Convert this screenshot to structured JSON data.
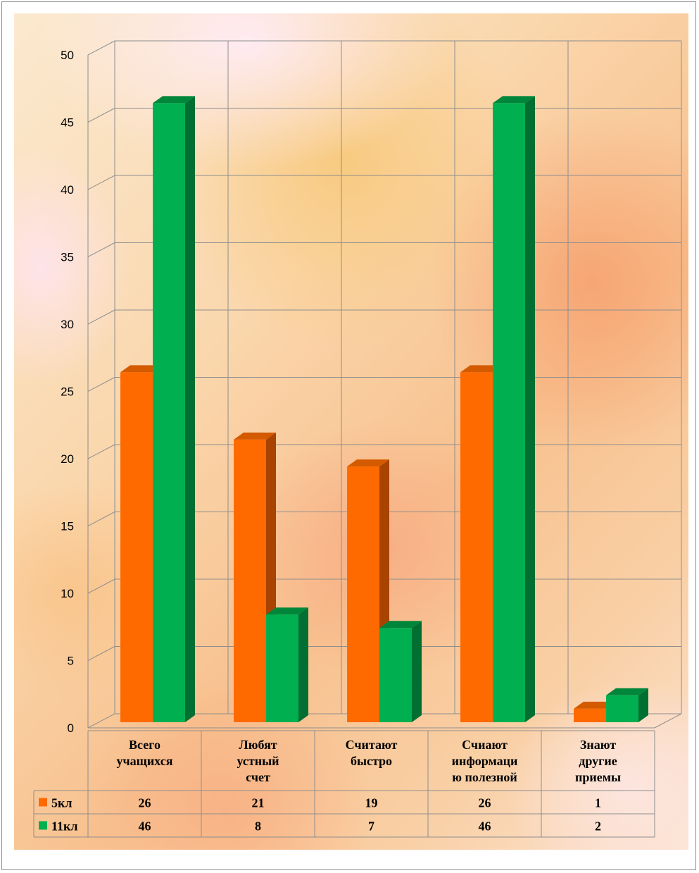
{
  "chart_data": {
    "type": "bar",
    "title": "",
    "xlabel": "",
    "ylabel": "",
    "ylim": [
      0,
      50
    ],
    "yticks": [
      0,
      5,
      10,
      15,
      20,
      25,
      30,
      35,
      40,
      45,
      50
    ],
    "grid": true,
    "legend_placement": "data-table-left",
    "categories": [
      [
        "Всего",
        "учащихся"
      ],
      [
        "Любят",
        "устный",
        "счет"
      ],
      [
        "Считают",
        "быстро"
      ],
      [
        "Счиают",
        "информаци",
        "ю полезной"
      ],
      [
        "Знают",
        "другие",
        "приемы"
      ]
    ],
    "series": [
      {
        "name": "5кл",
        "values": [
          26,
          21,
          19,
          26,
          1
        ],
        "color": "#ff6a00",
        "shade_top": "#d45a00",
        "shade_side": "#a84300"
      },
      {
        "name": "11кл",
        "values": [
          46,
          8,
          7,
          46,
          2
        ],
        "color": "#00b050",
        "shade_top": "#00863a",
        "shade_side": "#006f31"
      }
    ]
  }
}
